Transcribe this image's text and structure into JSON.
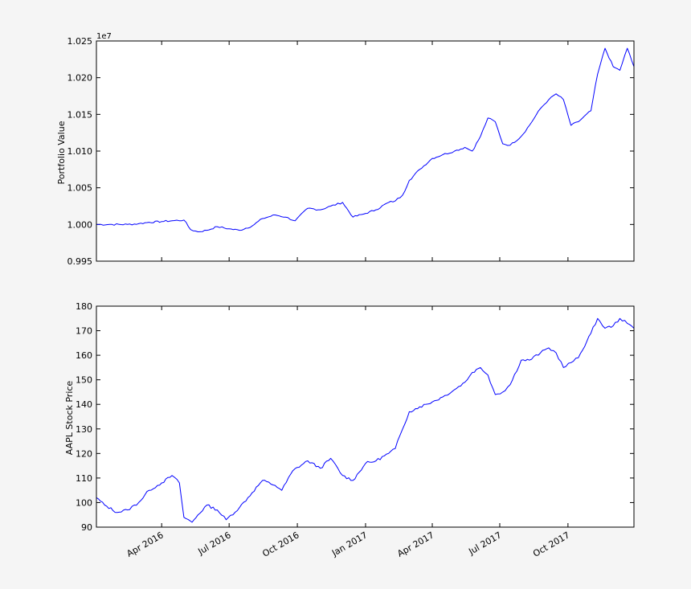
{
  "chart_data": [
    {
      "type": "line",
      "ylabel": "Portfolio Value",
      "offset_label": "1e7",
      "ylim": [
        0.995,
        1.025
      ],
      "yticks": [
        "0.995",
        "1.000",
        "1.005",
        "1.010",
        "1.015",
        "1.020",
        "1.025"
      ],
      "xlim": [
        "2016-01-04",
        "2017-12-29"
      ],
      "show_x_tick_labels": false,
      "color": "#0000ff",
      "series": [
        {
          "x": [
            "2016-01-04",
            "2016-01-25",
            "2016-02-15",
            "2016-03-01",
            "2016-03-15",
            "2016-04-01",
            "2016-04-15",
            "2016-05-01",
            "2016-05-10",
            "2016-05-20",
            "2016-06-01",
            "2016-06-15",
            "2016-07-01",
            "2016-07-15",
            "2016-08-01",
            "2016-08-15",
            "2016-09-01",
            "2016-09-15",
            "2016-09-28",
            "2016-10-15",
            "2016-11-01",
            "2016-11-15",
            "2016-12-01",
            "2016-12-15",
            "2017-01-01",
            "2017-01-15",
            "2017-02-01",
            "2017-02-10",
            "2017-02-20",
            "2017-03-01",
            "2017-03-15",
            "2017-04-01",
            "2017-04-15",
            "2017-05-01",
            "2017-05-15",
            "2017-05-25",
            "2017-06-05",
            "2017-06-15",
            "2017-06-25",
            "2017-07-05",
            "2017-07-15",
            "2017-07-30",
            "2017-08-10",
            "2017-08-25",
            "2017-09-05",
            "2017-09-15",
            "2017-09-25",
            "2017-10-05",
            "2017-10-15",
            "2017-11-01",
            "2017-11-10",
            "2017-11-20",
            "2017-12-01",
            "2017-12-10",
            "2017-12-20",
            "2017-12-29"
          ],
          "values": [
            1.0,
            1.0,
            1.0,
            1.0001,
            1.0003,
            1.0004,
            1.0005,
            1.0006,
            0.9993,
            0.999,
            0.9992,
            0.9997,
            0.9994,
            0.9992,
            0.9998,
            1.0008,
            1.0013,
            1.001,
            1.0005,
            1.0022,
            1.002,
            1.0025,
            1.003,
            1.001,
            1.0015,
            1.002,
            1.003,
            1.0032,
            1.004,
            1.006,
            1.0075,
            1.009,
            1.0095,
            1.01,
            1.0105,
            1.01,
            1.012,
            1.0145,
            1.014,
            1.011,
            1.0108,
            1.012,
            1.0135,
            1.0158,
            1.017,
            1.0178,
            1.017,
            1.0135,
            1.014,
            1.0155,
            1.0205,
            1.024,
            1.0215,
            1.021,
            1.024,
            1.0215
          ]
        }
      ]
    },
    {
      "type": "line",
      "ylabel": "AAPL Stock Price",
      "ylim": [
        90,
        180
      ],
      "yticks": [
        "90",
        "100",
        "110",
        "120",
        "130",
        "140",
        "150",
        "160",
        "170",
        "180"
      ],
      "xlim": [
        "2016-01-04",
        "2017-12-29"
      ],
      "xticks": [
        "2016-04-01",
        "2016-07-01",
        "2016-10-01",
        "2017-01-01",
        "2017-04-01",
        "2017-07-01",
        "2017-10-01"
      ],
      "xticklabels": [
        "Apr 2016",
        "Jul 2016",
        "Oct 2016",
        "Jan 2017",
        "Apr 2017",
        "Jul 2017",
        "Oct 2017"
      ],
      "color": "#0000ff",
      "series": [
        {
          "x": [
            "2016-01-04",
            "2016-01-15",
            "2016-02-01",
            "2016-02-15",
            "2016-03-01",
            "2016-03-15",
            "2016-04-01",
            "2016-04-15",
            "2016-04-25",
            "2016-05-01",
            "2016-05-12",
            "2016-05-20",
            "2016-06-01",
            "2016-06-15",
            "2016-06-27",
            "2016-07-15",
            "2016-08-01",
            "2016-08-15",
            "2016-09-01",
            "2016-09-10",
            "2016-09-25",
            "2016-10-15",
            "2016-11-01",
            "2016-11-15",
            "2016-12-01",
            "2016-12-15",
            "2017-01-01",
            "2017-01-15",
            "2017-02-01",
            "2017-02-10",
            "2017-02-20",
            "2017-03-01",
            "2017-03-15",
            "2017-04-01",
            "2017-04-15",
            "2017-05-01",
            "2017-05-15",
            "2017-05-25",
            "2017-06-05",
            "2017-06-15",
            "2017-06-25",
            "2017-07-05",
            "2017-07-15",
            "2017-07-30",
            "2017-08-10",
            "2017-08-25",
            "2017-09-05",
            "2017-09-15",
            "2017-09-25",
            "2017-10-05",
            "2017-10-15",
            "2017-11-01",
            "2017-11-10",
            "2017-11-20",
            "2017-12-01",
            "2017-12-10",
            "2017-12-20",
            "2017-12-29"
          ],
          "values": [
            102,
            99,
            96,
            97,
            100,
            105,
            108,
            111,
            108,
            94,
            92,
            95,
            99,
            97,
            93,
            98,
            104,
            109,
            107,
            105,
            113,
            117,
            114,
            118,
            111,
            109,
            116,
            117,
            120,
            122,
            130,
            137,
            139,
            141,
            143,
            146,
            149,
            153,
            155,
            152,
            144,
            145,
            148,
            158,
            158,
            161,
            163,
            161,
            155,
            157,
            159,
            169,
            175,
            171,
            172,
            175,
            173,
            171
          ]
        }
      ]
    }
  ]
}
